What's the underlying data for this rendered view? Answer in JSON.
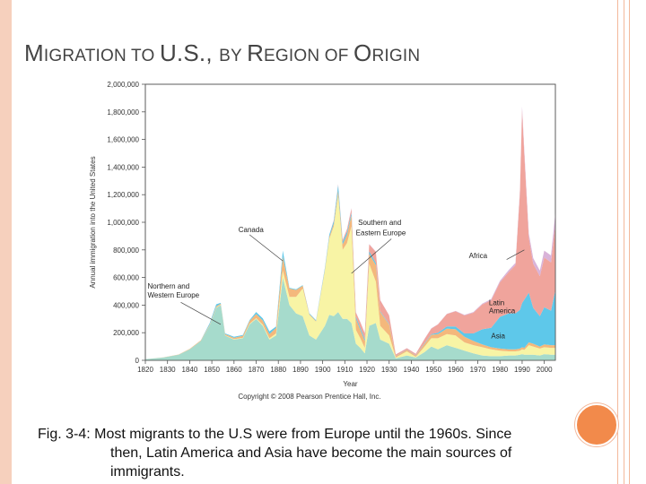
{
  "slide": {
    "title_parts": [
      "M",
      "IGRATION TO ",
      "U.S., ",
      "BY ",
      "R",
      "EGION OF ",
      "O",
      "RIGIN"
    ],
    "caption_line1": "Fig. 3-4: Most migrants to the U.S were from Europe until the 1960s.  Since",
    "caption_line2": "then, Latin America and Asia have become the main sources of",
    "caption_line3": "immigrants.",
    "copyright": "Copyright © 2008 Pearson Prentice Hall, Inc.",
    "colors": {
      "accent_circle": "#f28a4b",
      "border": "#f6d0bd"
    }
  },
  "chart_data": {
    "type": "area",
    "stacked": true,
    "title": "",
    "xlabel": "Year",
    "ylabel": "Annual immigration into the United States",
    "xlim": [
      1820,
      2005
    ],
    "ylim": [
      0,
      2000000
    ],
    "x_ticks": [
      1820,
      1830,
      1840,
      1850,
      1860,
      1870,
      1880,
      1890,
      1900,
      1910,
      1920,
      1930,
      1940,
      1950,
      1960,
      1970,
      1980,
      1990,
      2000
    ],
    "y_ticks": [
      0,
      200000,
      400000,
      600000,
      800000,
      1000000,
      1200000,
      1400000,
      1600000,
      1800000,
      2000000
    ],
    "y_tick_labels": [
      "0",
      "200,000",
      "400,000",
      "600,000",
      "800,000",
      "1,000,000",
      "1,200,000",
      "1,400,000",
      "1,600,000",
      "1,800,000",
      "2,000,000"
    ],
    "x": [
      1820,
      1828,
      1835,
      1840,
      1845,
      1849,
      1852,
      1854,
      1856,
      1860,
      1864,
      1867,
      1870,
      1873,
      1876,
      1879,
      1882,
      1885,
      1888,
      1891,
      1894,
      1897,
      1901,
      1903,
      1905,
      1907,
      1909,
      1911,
      1913,
      1915,
      1917,
      1919,
      1921,
      1924,
      1926,
      1930,
      1933,
      1938,
      1942,
      1946,
      1949,
      1952,
      1956,
      1960,
      1964,
      1968,
      1972,
      1976,
      1980,
      1984,
      1987,
      1989,
      1990,
      1991,
      1993,
      1995,
      1998,
      2000,
      2003,
      2005
    ],
    "series": [
      {
        "name": "Northern and Western Europe",
        "color": "#a6dbcc",
        "values": [
          8000,
          20000,
          40000,
          80000,
          140000,
          250000,
          380000,
          400000,
          180000,
          150000,
          160000,
          260000,
          300000,
          250000,
          150000,
          180000,
          600000,
          400000,
          340000,
          320000,
          180000,
          150000,
          250000,
          330000,
          320000,
          350000,
          300000,
          300000,
          270000,
          120000,
          90000,
          50000,
          250000,
          270000,
          150000,
          120000,
          15000,
          35000,
          20000,
          60000,
          100000,
          80000,
          110000,
          90000,
          70000,
          50000,
          35000,
          30000,
          30000,
          35000,
          35000,
          40000,
          45000,
          40000,
          40000,
          40000,
          35000,
          45000,
          40000,
          40000
        ]
      },
      {
        "name": "Southern and Eastern Europe",
        "color": "#f8f4a5",
        "values": [
          0,
          0,
          0,
          0,
          0,
          2000,
          3000,
          3000,
          2000,
          3000,
          3000,
          5000,
          5000,
          8000,
          10000,
          15000,
          50000,
          60000,
          120000,
          200000,
          150000,
          130000,
          400000,
          550000,
          650000,
          850000,
          500000,
          550000,
          700000,
          100000,
          70000,
          40000,
          450000,
          300000,
          100000,
          60000,
          5000,
          30000,
          5000,
          40000,
          60000,
          80000,
          80000,
          90000,
          60000,
          60000,
          60000,
          50000,
          40000,
          30000,
          30000,
          30000,
          35000,
          35000,
          70000,
          60000,
          50000,
          50000,
          50000,
          50000
        ]
      },
      {
        "name": "Canada",
        "color": "#f4b87c",
        "values": [
          0,
          1000,
          2000,
          3000,
          5000,
          5000,
          8000,
          8000,
          8000,
          10000,
          15000,
          20000,
          30000,
          30000,
          30000,
          40000,
          100000,
          60000,
          50000,
          20000,
          5000,
          5000,
          10000,
          15000,
          20000,
          30000,
          40000,
          60000,
          80000,
          80000,
          60000,
          50000,
          70000,
          120000,
          100000,
          80000,
          10000,
          10000,
          10000,
          20000,
          25000,
          30000,
          40000,
          45000,
          40000,
          30000,
          20000,
          15000,
          15000,
          15000,
          15000,
          15000,
          15000,
          15000,
          20000,
          20000,
          15000,
          20000,
          20000,
          20000
        ]
      },
      {
        "name": "Asia",
        "color": "#5ec8ea",
        "values": [
          0,
          0,
          0,
          0,
          0,
          10000,
          15000,
          5000,
          5000,
          8000,
          5000,
          5000,
          15000,
          15000,
          20000,
          10000,
          45000,
          5000,
          5000,
          5000,
          5000,
          5000,
          10000,
          15000,
          20000,
          40000,
          20000,
          20000,
          20000,
          15000,
          15000,
          15000,
          20000,
          15000,
          5000,
          5000,
          2000,
          2000,
          2000,
          5000,
          5000,
          10000,
          15000,
          20000,
          25000,
          55000,
          110000,
          140000,
          230000,
          260000,
          260000,
          280000,
          320000,
          350000,
          360000,
          260000,
          220000,
          270000,
          250000,
          400000
        ]
      },
      {
        "name": "Latin America",
        "color": "#f0a49c",
        "values": [
          0,
          0,
          0,
          0,
          0,
          0,
          0,
          0,
          0,
          0,
          0,
          0,
          0,
          0,
          0,
          0,
          0,
          0,
          0,
          0,
          0,
          0,
          0,
          0,
          5000,
          5000,
          10000,
          20000,
          30000,
          30000,
          40000,
          40000,
          50000,
          80000,
          80000,
          60000,
          10000,
          10000,
          10000,
          30000,
          40000,
          60000,
          90000,
          110000,
          130000,
          150000,
          180000,
          200000,
          250000,
          300000,
          350000,
          850000,
          1400000,
          1050000,
          400000,
          320000,
          290000,
          360000,
          350000,
          480000
        ]
      },
      {
        "name": "Africa",
        "color": "#d9b3d9",
        "values": [
          0,
          0,
          0,
          0,
          0,
          0,
          0,
          0,
          0,
          0,
          0,
          0,
          0,
          0,
          0,
          0,
          0,
          0,
          0,
          0,
          0,
          0,
          0,
          0,
          2000,
          3000,
          3000,
          3000,
          3000,
          3000,
          3000,
          3000,
          3000,
          3000,
          2000,
          2000,
          1000,
          1000,
          1000,
          2000,
          2000,
          2000,
          2000,
          3000,
          4000,
          5000,
          6000,
          8000,
          10000,
          15000,
          15000,
          20000,
          25000,
          30000,
          30000,
          40000,
          40000,
          50000,
          50000,
          80000
        ]
      }
    ],
    "annotations": [
      {
        "text": "Canada",
        "year": 1862,
        "value": 930000
      },
      {
        "text": "Southern and",
        "year": 1916,
        "value": 980000
      },
      {
        "text": "Eastern Europe",
        "year": 1915,
        "value": 905000
      },
      {
        "text": "Northern and",
        "year": 1821,
        "value": 520000
      },
      {
        "text": "Western Europe",
        "year": 1821,
        "value": 455000
      },
      {
        "text": "Africa",
        "year": 1966,
        "value": 740000
      },
      {
        "text": "Latin",
        "year": 1975,
        "value": 400000
      },
      {
        "text": "America",
        "year": 1975,
        "value": 340000
      },
      {
        "text": "Asia",
        "year": 1976,
        "value": 160000
      }
    ]
  }
}
